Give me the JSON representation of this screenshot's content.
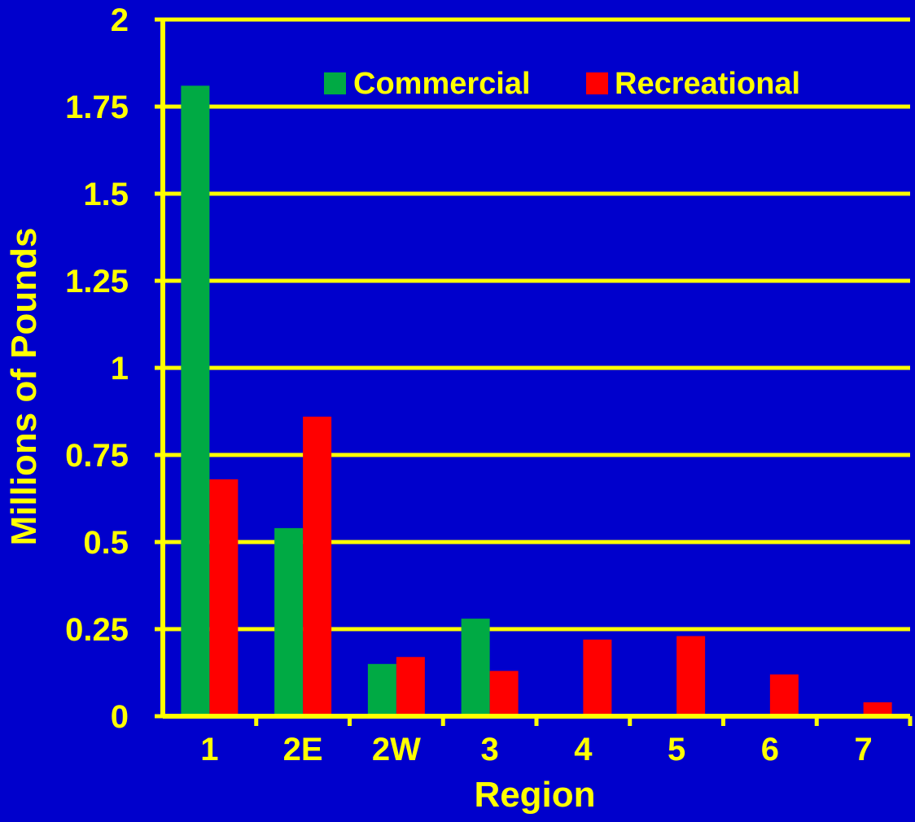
{
  "colors": {
    "background": "#0000cc",
    "axis": "#ffff00",
    "commercial": "#00aa44",
    "recreational": "#ff0000"
  },
  "chart_data": {
    "type": "bar",
    "xlabel": "Region",
    "ylabel": "Millions of Pounds",
    "categories": [
      "1",
      "2E",
      "2W",
      "3",
      "4",
      "5",
      "6",
      "7"
    ],
    "series": [
      {
        "name": "Commercial",
        "values": [
          1.81,
          0.54,
          0.15,
          0.28,
          0,
          0,
          0,
          0
        ]
      },
      {
        "name": "Recreational",
        "values": [
          0.68,
          0.86,
          0.17,
          0.13,
          0.22,
          0.23,
          0.12,
          0.04
        ]
      }
    ],
    "ylim": [
      0,
      2
    ],
    "yticks": [
      0,
      0.25,
      0.5,
      0.75,
      1,
      1.25,
      1.5,
      1.75,
      2
    ],
    "ytick_labels": [
      "0",
      "0.25",
      "0.5",
      "0.75",
      "1",
      "1.25",
      "1.5",
      "1.75",
      "2"
    ],
    "grid": true,
    "legend_position": "top-right"
  }
}
